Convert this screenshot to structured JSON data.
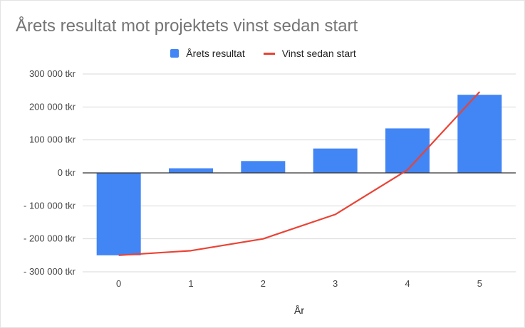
{
  "chart_data": {
    "type": "bar",
    "title": "Årets resultat mot projektets vinst sedan start",
    "xlabel": "År",
    "ylabel": "",
    "categories": [
      "0",
      "1",
      "2",
      "3",
      "4",
      "5"
    ],
    "series": [
      {
        "name": "Årets resultat",
        "kind": "bar",
        "color": "#4285f4",
        "values": [
          -250000,
          14000,
          36000,
          74000,
          135000,
          237000
        ]
      },
      {
        "name": "Vinst sedan start",
        "kind": "line",
        "color": "#ea4335",
        "values": [
          -250000,
          -236000,
          -200000,
          -126000,
          9000,
          246000
        ]
      }
    ],
    "ylim": [
      -300000,
      300000
    ],
    "yticks": [
      {
        "value": 300000,
        "label": "300 000 tkr"
      },
      {
        "value": 200000,
        "label": "200 000 tkr"
      },
      {
        "value": 100000,
        "label": "100 000 tkr"
      },
      {
        "value": 0,
        "label": "0 tkr"
      },
      {
        "value": -100000,
        "label": "- 100 000 tkr"
      },
      {
        "value": -200000,
        "label": "- 200 000 tkr"
      },
      {
        "value": -300000,
        "label": "- 300 000 tkr"
      }
    ],
    "grid": true,
    "legend_position": "top"
  }
}
